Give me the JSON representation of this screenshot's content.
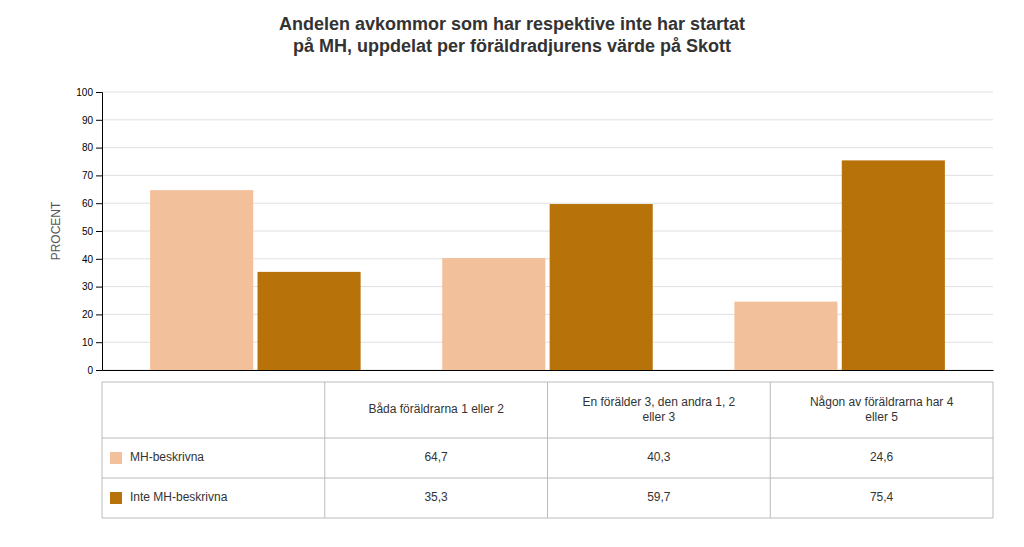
{
  "chart_data": {
    "type": "bar",
    "title": "Andelen avkommor som har respektive inte har startat\npå MH, uppdelat per föräldradjurens värde på Skott",
    "categories": [
      "Båda föräldrarna 1 eller 2",
      "En förälder 3, den andra 1, 2\neller 3",
      "Någon av föräldrarna har 4\neller 5"
    ],
    "series": [
      {
        "name": "MH-beskrivna",
        "color": "#F2C09A",
        "values": [
          64.7,
          40.3,
          24.6
        ],
        "value_labels": [
          "64,7",
          "40,3",
          "24,6"
        ]
      },
      {
        "name": "Inte MH-beskrivna",
        "color": "#B8720A",
        "values": [
          35.3,
          59.7,
          75.4
        ],
        "value_labels": [
          "35,3",
          "59,7",
          "75,4"
        ]
      }
    ],
    "y_label": "PROCENT",
    "ylim": [
      0,
      100
    ],
    "yticks": [
      0,
      10,
      20,
      30,
      40,
      50,
      60,
      70,
      80,
      90,
      100
    ],
    "grid": true
  }
}
